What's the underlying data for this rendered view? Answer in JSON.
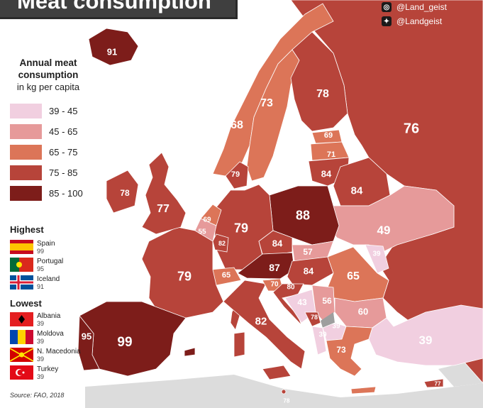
{
  "title": "Meat consumption",
  "social": {
    "instagram": "@Land_geist",
    "twitter": "@Landgeist"
  },
  "legend": {
    "title": "Annual meat consumption",
    "subtitle": "in kg per capita",
    "bins": [
      {
        "label": "39 - 45",
        "color": "#f1cfe0"
      },
      {
        "label": "45 - 65",
        "color": "#e69a9a"
      },
      {
        "label": "65 - 75",
        "color": "#dc7558"
      },
      {
        "label": "75 - 85",
        "color": "#b7443a"
      },
      {
        "label": "85 - 100",
        "color": "#7d1d1a"
      }
    ]
  },
  "highest": {
    "title": "Highest",
    "items": [
      {
        "country": "Spain",
        "value": "99"
      },
      {
        "country": "Portugal",
        "value": "95"
      },
      {
        "country": "Iceland",
        "value": "91"
      }
    ]
  },
  "lowest": {
    "title": "Lowest",
    "items": [
      {
        "country": "Albania",
        "value": "39"
      },
      {
        "country": "Moldova",
        "value": "39"
      },
      {
        "country": "N. Macedonia",
        "value": "39"
      },
      {
        "country": "Turkey",
        "value": "39"
      }
    ]
  },
  "source": "Source: FAO, 2018",
  "values": [
    {
      "name": "iceland",
      "value": "91",
      "bin": 4
    },
    {
      "name": "russia",
      "value": "76",
      "bin": 3
    },
    {
      "name": "finland",
      "value": "78",
      "bin": 3
    },
    {
      "name": "sweden",
      "value": "73",
      "bin": 2
    },
    {
      "name": "norway",
      "value": "68",
      "bin": 2
    },
    {
      "name": "estonia",
      "value": "69",
      "bin": 2
    },
    {
      "name": "latvia",
      "value": "71",
      "bin": 2
    },
    {
      "name": "lithuania",
      "value": "84",
      "bin": 3
    },
    {
      "name": "belarus",
      "value": "84",
      "bin": 3
    },
    {
      "name": "denmark",
      "value": "79",
      "bin": 3
    },
    {
      "name": "ireland",
      "value": "78",
      "bin": 3
    },
    {
      "name": "united-kingdom",
      "value": "77",
      "bin": 3
    },
    {
      "name": "netherlands",
      "value": "69",
      "bin": 2
    },
    {
      "name": "belgium",
      "value": "55",
      "bin": 1
    },
    {
      "name": "luxembourg",
      "value": "82",
      "bin": 3
    },
    {
      "name": "germany",
      "value": "79",
      "bin": 3
    },
    {
      "name": "poland",
      "value": "88",
      "bin": 4
    },
    {
      "name": "ukraine",
      "value": "49",
      "bin": 1
    },
    {
      "name": "czechia",
      "value": "84",
      "bin": 3
    },
    {
      "name": "slovakia",
      "value": "57",
      "bin": 1
    },
    {
      "name": "austria",
      "value": "87",
      "bin": 4
    },
    {
      "name": "hungary",
      "value": "84",
      "bin": 3
    },
    {
      "name": "switzerland",
      "value": "65",
      "bin": 2
    },
    {
      "name": "france",
      "value": "79",
      "bin": 3
    },
    {
      "name": "moldova",
      "value": "39",
      "bin": 0
    },
    {
      "name": "romania",
      "value": "65",
      "bin": 2
    },
    {
      "name": "slovenia",
      "value": "70",
      "bin": 2
    },
    {
      "name": "croatia",
      "value": "80",
      "bin": 3
    },
    {
      "name": "bosnia",
      "value": "43",
      "bin": 0
    },
    {
      "name": "serbia",
      "value": "56",
      "bin": 1
    },
    {
      "name": "montenegro",
      "value": "78",
      "bin": 3
    },
    {
      "name": "north-macedonia",
      "value": "39",
      "bin": 0
    },
    {
      "name": "albania",
      "value": "39",
      "bin": 0
    },
    {
      "name": "bulgaria",
      "value": "60",
      "bin": 1
    },
    {
      "name": "italy",
      "value": "82",
      "bin": 3
    },
    {
      "name": "greece",
      "value": "73",
      "bin": 2
    },
    {
      "name": "malta",
      "value": "78",
      "bin": 3
    },
    {
      "name": "cyprus",
      "value": "77",
      "bin": 3
    },
    {
      "name": "turkey",
      "value": "39",
      "bin": 0
    },
    {
      "name": "spain",
      "value": "99",
      "bin": 4
    },
    {
      "name": "portugal",
      "value": "95",
      "bin": 4
    }
  ]
}
